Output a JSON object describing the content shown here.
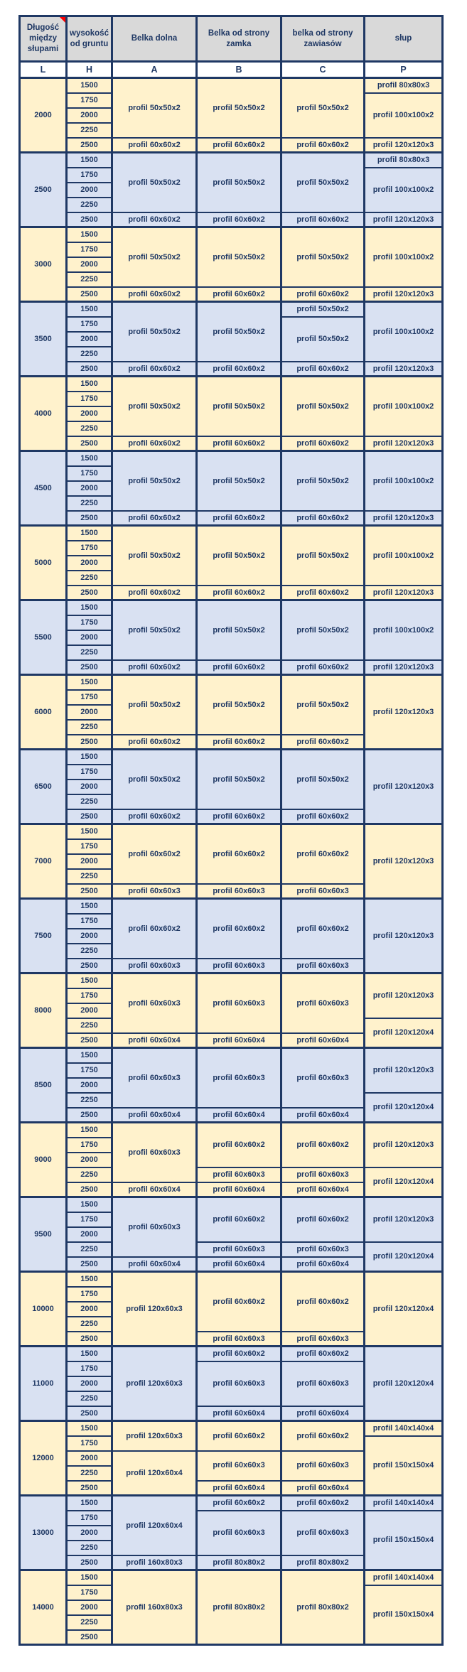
{
  "colors": {
    "navy": "#1f3864",
    "header_gray": "#d9d9d9",
    "group_cream": "#fff2cc",
    "group_blue": "#d9e1f2",
    "white": "#ffffff",
    "comment_red": "#ff0000"
  },
  "table": {
    "header": {
      "length_between_posts": "Długość między słupami",
      "height_from_ground": "wysokość od gruntu",
      "bottom_beam": "Belka dolna",
      "lock_side_beam": "Belka od strony zamka",
      "hinge_side_beam": "belka od strony zawiasów",
      "post": "słup"
    },
    "subheader": [
      "L",
      "H",
      "A",
      "B",
      "C",
      "P"
    ],
    "heights": [
      "1500",
      "1750",
      "2000",
      "2250",
      "2500"
    ],
    "groups": [
      {
        "l": "2000",
        "tone": "cream",
        "a": [
          {
            "rows": 4,
            "text": "profil 50x50x2"
          },
          {
            "rows": 1,
            "text": "profil 60x60x2"
          }
        ],
        "b": [
          {
            "rows": 4,
            "text": "profil 50x50x2"
          },
          {
            "rows": 1,
            "text": "profil 60x60x2"
          }
        ],
        "c": [
          {
            "rows": 4,
            "text": "profil 50x50x2"
          },
          {
            "rows": 1,
            "text": "profil 60x60x2"
          }
        ],
        "p": [
          {
            "rows": 1,
            "text": "profil 80x80x3"
          },
          {
            "rows": 3,
            "text": "profil 100x100x2"
          },
          {
            "rows": 1,
            "text": "profil 120x120x3"
          }
        ]
      },
      {
        "l": "2500",
        "tone": "blue",
        "a": [
          {
            "rows": 4,
            "text": "profil 50x50x2"
          },
          {
            "rows": 1,
            "text": "profil 60x60x2"
          }
        ],
        "b": [
          {
            "rows": 4,
            "text": "profil 50x50x2"
          },
          {
            "rows": 1,
            "text": "profil 60x60x2"
          }
        ],
        "c": [
          {
            "rows": 4,
            "text": "profil 50x50x2"
          },
          {
            "rows": 1,
            "text": "profil 60x60x2"
          }
        ],
        "p": [
          {
            "rows": 1,
            "text": "profil 80x80x3"
          },
          {
            "rows": 3,
            "text": "profil 100x100x2"
          },
          {
            "rows": 1,
            "text": "profil 120x120x3"
          }
        ]
      },
      {
        "l": "3000",
        "tone": "cream",
        "a": [
          {
            "rows": 4,
            "text": "profil 50x50x2"
          },
          {
            "rows": 1,
            "text": "profil 60x60x2"
          }
        ],
        "b": [
          {
            "rows": 4,
            "text": "profil 50x50x2"
          },
          {
            "rows": 1,
            "text": "profil 60x60x2"
          }
        ],
        "c": [
          {
            "rows": 4,
            "text": "profil 50x50x2"
          },
          {
            "rows": 1,
            "text": "profil 60x60x2"
          }
        ],
        "p": [
          {
            "rows": 4,
            "text": "profil 100x100x2"
          },
          {
            "rows": 1,
            "text": "profil 120x120x3"
          }
        ]
      },
      {
        "l": "3500",
        "tone": "blue",
        "a": [
          {
            "rows": 4,
            "text": "profil 50x50x2"
          },
          {
            "rows": 1,
            "text": "profil 60x60x2"
          }
        ],
        "b": [
          {
            "rows": 4,
            "text": "profil 50x50x2"
          },
          {
            "rows": 1,
            "text": "profil 60x60x2"
          }
        ],
        "c": [
          {
            "rows": 1,
            "text": "profil 50x50x2"
          },
          {
            "rows": 3,
            "text": "profil 50x50x2"
          },
          {
            "rows": 1,
            "text": "profil 60x60x2"
          }
        ],
        "p": [
          {
            "rows": 4,
            "text": "profil 100x100x2"
          },
          {
            "rows": 1,
            "text": "profil 120x120x3"
          }
        ]
      },
      {
        "l": "4000",
        "tone": "cream",
        "a": [
          {
            "rows": 4,
            "text": "profil 50x50x2"
          },
          {
            "rows": 1,
            "text": "profil 60x60x2"
          }
        ],
        "b": [
          {
            "rows": 4,
            "text": "profil 50x50x2"
          },
          {
            "rows": 1,
            "text": "profil 60x60x2"
          }
        ],
        "c": [
          {
            "rows": 4,
            "text": "profil 50x50x2"
          },
          {
            "rows": 1,
            "text": "profil 60x60x2"
          }
        ],
        "p": [
          {
            "rows": 4,
            "text": "profil 100x100x2"
          },
          {
            "rows": 1,
            "text": "profil 120x120x3"
          }
        ]
      },
      {
        "l": "4500",
        "tone": "blue",
        "a": [
          {
            "rows": 4,
            "text": "profil 50x50x2"
          },
          {
            "rows": 1,
            "text": "profil 60x60x2"
          }
        ],
        "b": [
          {
            "rows": 4,
            "text": "profil 50x50x2"
          },
          {
            "rows": 1,
            "text": "profil 60x60x2"
          }
        ],
        "c": [
          {
            "rows": 4,
            "text": "profil 50x50x2"
          },
          {
            "rows": 1,
            "text": "profil 60x60x2"
          }
        ],
        "p": [
          {
            "rows": 4,
            "text": "profil 100x100x2"
          },
          {
            "rows": 1,
            "text": "profil 120x120x3"
          }
        ]
      },
      {
        "l": "5000",
        "tone": "cream",
        "a": [
          {
            "rows": 4,
            "text": "profil 50x50x2"
          },
          {
            "rows": 1,
            "text": "profil 60x60x2"
          }
        ],
        "b": [
          {
            "rows": 4,
            "text": "profil 50x50x2"
          },
          {
            "rows": 1,
            "text": "profil 60x60x2"
          }
        ],
        "c": [
          {
            "rows": 4,
            "text": "profil 50x50x2"
          },
          {
            "rows": 1,
            "text": "profil 60x60x2"
          }
        ],
        "p": [
          {
            "rows": 4,
            "text": "profil 100x100x2"
          },
          {
            "rows": 1,
            "text": "profil 120x120x3"
          }
        ]
      },
      {
        "l": "5500",
        "tone": "blue",
        "a": [
          {
            "rows": 4,
            "text": "profil 50x50x2"
          },
          {
            "rows": 1,
            "text": "profil 60x60x2"
          }
        ],
        "b": [
          {
            "rows": 4,
            "text": "profil 50x50x2"
          },
          {
            "rows": 1,
            "text": "profil 60x60x2"
          }
        ],
        "c": [
          {
            "rows": 4,
            "text": "profil 50x50x2"
          },
          {
            "rows": 1,
            "text": "profil 60x60x2"
          }
        ],
        "p": [
          {
            "rows": 4,
            "text": "profil 100x100x2"
          },
          {
            "rows": 1,
            "text": "profil 120x120x3"
          }
        ]
      },
      {
        "l": "6000",
        "tone": "cream",
        "a": [
          {
            "rows": 4,
            "text": "profil 50x50x2"
          },
          {
            "rows": 1,
            "text": "profil 60x60x2"
          }
        ],
        "b": [
          {
            "rows": 4,
            "text": "profil 50x50x2"
          },
          {
            "rows": 1,
            "text": "profil 60x60x2"
          }
        ],
        "c": [
          {
            "rows": 4,
            "text": "profil 50x50x2"
          },
          {
            "rows": 1,
            "text": "profil 60x60x2"
          }
        ],
        "p": [
          {
            "rows": 5,
            "text": "profil 120x120x3"
          }
        ]
      },
      {
        "l": "6500",
        "tone": "blue",
        "a": [
          {
            "rows": 4,
            "text": "profil 50x50x2"
          },
          {
            "rows": 1,
            "text": "profil 60x60x2"
          }
        ],
        "b": [
          {
            "rows": 4,
            "text": "profil 50x50x2"
          },
          {
            "rows": 1,
            "text": "profil 60x60x2"
          }
        ],
        "c": [
          {
            "rows": 4,
            "text": "profil 50x50x2"
          },
          {
            "rows": 1,
            "text": "profil 60x60x2"
          }
        ],
        "p": [
          {
            "rows": 5,
            "text": "profil 120x120x3"
          }
        ]
      },
      {
        "l": "7000",
        "tone": "cream",
        "a": [
          {
            "rows": 4,
            "text": "profil 60x60x2"
          },
          {
            "rows": 1,
            "text": "profil 60x60x3"
          }
        ],
        "b": [
          {
            "rows": 4,
            "text": "profil 60x60x2"
          },
          {
            "rows": 1,
            "text": "profil 60x60x3"
          }
        ],
        "c": [
          {
            "rows": 4,
            "text": "profil 60x60x2"
          },
          {
            "rows": 1,
            "text": "profil 60x60x3"
          }
        ],
        "p": [
          {
            "rows": 5,
            "text": "profil 120x120x3"
          }
        ]
      },
      {
        "l": "7500",
        "tone": "blue",
        "a": [
          {
            "rows": 4,
            "text": "profil 60x60x2"
          },
          {
            "rows": 1,
            "text": "profil 60x60x3"
          }
        ],
        "b": [
          {
            "rows": 4,
            "text": "profil 60x60x2"
          },
          {
            "rows": 1,
            "text": "profil 60x60x3"
          }
        ],
        "c": [
          {
            "rows": 4,
            "text": "profil 60x60x2"
          },
          {
            "rows": 1,
            "text": "profil 60x60x3"
          }
        ],
        "p": [
          {
            "rows": 5,
            "text": "profil 120x120x3"
          }
        ]
      },
      {
        "l": "8000",
        "tone": "cream",
        "a": [
          {
            "rows": 4,
            "text": "profil 60x60x3"
          },
          {
            "rows": 1,
            "text": "profil 60x60x4"
          }
        ],
        "b": [
          {
            "rows": 4,
            "text": "profil 60x60x3"
          },
          {
            "rows": 1,
            "text": "profil 60x60x4"
          }
        ],
        "c": [
          {
            "rows": 4,
            "text": "profil 60x60x3"
          },
          {
            "rows": 1,
            "text": "profil 60x60x4"
          }
        ],
        "p": [
          {
            "rows": 3,
            "text": "profil 120x120x3"
          },
          {
            "rows": 2,
            "text": "profil 120x120x4"
          }
        ]
      },
      {
        "l": "8500",
        "tone": "blue",
        "a": [
          {
            "rows": 4,
            "text": "profil 60x60x3"
          },
          {
            "rows": 1,
            "text": "profil 60x60x4"
          }
        ],
        "b": [
          {
            "rows": 4,
            "text": "profil 60x60x3"
          },
          {
            "rows": 1,
            "text": "profil 60x60x4"
          }
        ],
        "c": [
          {
            "rows": 4,
            "text": "profil 60x60x3"
          },
          {
            "rows": 1,
            "text": "profil 60x60x4"
          }
        ],
        "p": [
          {
            "rows": 3,
            "text": "profil 120x120x3"
          },
          {
            "rows": 2,
            "text": "profil 120x120x4"
          }
        ]
      },
      {
        "l": "9000",
        "tone": "cream",
        "a": [
          {
            "rows": 4,
            "text": "profil 60x60x3"
          },
          {
            "rows": 1,
            "text": "profil 60x60x4"
          }
        ],
        "b": [
          {
            "rows": 3,
            "text": "profil 60x60x2"
          },
          {
            "rows": 1,
            "text": "profil 60x60x3"
          },
          {
            "rows": 1,
            "text": "profil 60x60x4"
          }
        ],
        "c": [
          {
            "rows": 3,
            "text": "profil 60x60x2"
          },
          {
            "rows": 1,
            "text": "profil 60x60x3"
          },
          {
            "rows": 1,
            "text": "profil 60x60x4"
          }
        ],
        "p": [
          {
            "rows": 3,
            "text": "profil 120x120x3"
          },
          {
            "rows": 2,
            "text": "profil 120x120x4"
          }
        ]
      },
      {
        "l": "9500",
        "tone": "blue",
        "a": [
          {
            "rows": 4,
            "text": "profil 60x60x3"
          },
          {
            "rows": 1,
            "text": "profil 60x60x4"
          }
        ],
        "b": [
          {
            "rows": 3,
            "text": "profil 60x60x2"
          },
          {
            "rows": 1,
            "text": "profil 60x60x3"
          },
          {
            "rows": 1,
            "text": "profil 60x60x4"
          }
        ],
        "c": [
          {
            "rows": 3,
            "text": "profil 60x60x2"
          },
          {
            "rows": 1,
            "text": "profil 60x60x3"
          },
          {
            "rows": 1,
            "text": "profil 60x60x4"
          }
        ],
        "p": [
          {
            "rows": 3,
            "text": "profil 120x120x3"
          },
          {
            "rows": 2,
            "text": "profil 120x120x4"
          }
        ]
      },
      {
        "l": "10000",
        "tone": "cream",
        "a": [
          {
            "rows": 5,
            "text": "profil 120x60x3"
          }
        ],
        "b": [
          {
            "rows": 4,
            "text": "profil 60x60x2"
          },
          {
            "rows": 1,
            "text": "profil 60x60x3"
          }
        ],
        "c": [
          {
            "rows": 4,
            "text": "profil 60x60x2"
          },
          {
            "rows": 1,
            "text": "profil 60x60x3"
          }
        ],
        "p": [
          {
            "rows": 5,
            "text": "profil 120x120x4"
          }
        ]
      },
      {
        "l": "11000",
        "tone": "blue",
        "a": [
          {
            "rows": 5,
            "text": "profil 120x60x3"
          }
        ],
        "b": [
          {
            "rows": 1,
            "text": "profil 60x60x2"
          },
          {
            "rows": 3,
            "text": "profil 60x60x3"
          },
          {
            "rows": 1,
            "text": "profil 60x60x4"
          }
        ],
        "c": [
          {
            "rows": 1,
            "text": "profil 60x60x2"
          },
          {
            "rows": 3,
            "text": "profil 60x60x3"
          },
          {
            "rows": 1,
            "text": "profil 60x60x4"
          }
        ],
        "p": [
          {
            "rows": 5,
            "text": "profil 120x120x4"
          }
        ]
      },
      {
        "l": "12000",
        "tone": "cream",
        "a": [
          {
            "rows": 2,
            "text": "profil 120x60x3"
          },
          {
            "rows": 3,
            "text": "profil 120x60x4"
          }
        ],
        "b": [
          {
            "rows": 2,
            "text": "profil 60x60x2"
          },
          {
            "rows": 2,
            "text": "profil 60x60x3"
          },
          {
            "rows": 1,
            "text": "profil 60x60x4"
          }
        ],
        "c": [
          {
            "rows": 2,
            "text": "profil 60x60x2"
          },
          {
            "rows": 2,
            "text": "profil 60x60x3"
          },
          {
            "rows": 1,
            "text": "profil 60x60x4"
          }
        ],
        "p": [
          {
            "rows": 1,
            "text": "profil 140x140x4"
          },
          {
            "rows": 4,
            "text": "profil 150x150x4"
          }
        ]
      },
      {
        "l": "13000",
        "tone": "blue",
        "a": [
          {
            "rows": 4,
            "text": "profil 120x60x4"
          },
          {
            "rows": 1,
            "text": "profil 160x80x3"
          }
        ],
        "b": [
          {
            "rows": 1,
            "text": "profil 60x60x2"
          },
          {
            "rows": 3,
            "text": "profil 60x60x3"
          },
          {
            "rows": 1,
            "text": "profil 80x80x2"
          }
        ],
        "c": [
          {
            "rows": 1,
            "text": "profil 60x60x2"
          },
          {
            "rows": 3,
            "text": "profil 60x60x3"
          },
          {
            "rows": 1,
            "text": "profil 80x80x2"
          }
        ],
        "p": [
          {
            "rows": 1,
            "text": "profil 140x140x4"
          },
          {
            "rows": 4,
            "text": "profil 150x150x4"
          }
        ]
      },
      {
        "l": "14000",
        "tone": "cream",
        "a": [
          {
            "rows": 5,
            "text": "profil 160x80x3"
          }
        ],
        "b": [
          {
            "rows": 5,
            "text": "profil 80x80x2"
          }
        ],
        "c": [
          {
            "rows": 5,
            "text": "profil 80x80x2"
          }
        ],
        "p": [
          {
            "rows": 1,
            "text": "profil 140x140x4"
          },
          {
            "rows": 4,
            "text": "profil 150x150x4"
          }
        ]
      }
    ]
  }
}
